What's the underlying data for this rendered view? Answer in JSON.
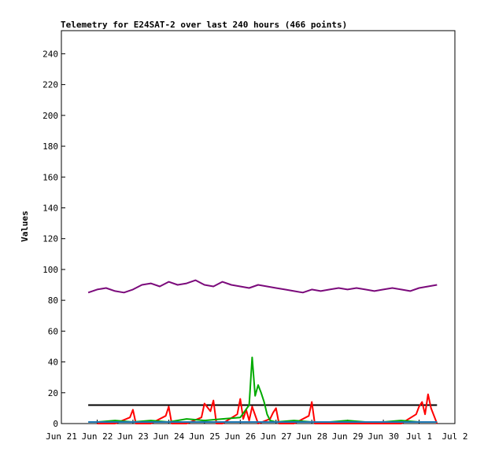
{
  "chart_data": {
    "type": "line",
    "title": "Telemetry for E24SAT-2 over last 240 hours (466 points)",
    "xlabel": "",
    "ylabel": "Values",
    "xlim": [
      "2024-06-21",
      "2024-07-02"
    ],
    "ylim": [
      0,
      255
    ],
    "x_ticks": [
      "Jun 21",
      "Jun 22",
      "Jun 23",
      "Jun 24",
      "Jun 25",
      "Jun 26",
      "Jun 27",
      "Jun 28",
      "Jun 29",
      "Jun 30",
      "Jul 1",
      "Jul 2"
    ],
    "y_ticks": [
      0,
      20,
      40,
      60,
      80,
      100,
      120,
      140,
      160,
      180,
      200,
      220,
      240
    ],
    "grid": false,
    "legend": "none",
    "series": [
      {
        "color": "#7b0a7b",
        "x": [
          "2024-06-21 18:00",
          "2024-06-22 00:00",
          "2024-06-22 06:00",
          "2024-06-22 12:00",
          "2024-06-22 18:00",
          "2024-06-23 00:00",
          "2024-06-23 06:00",
          "2024-06-23 12:00",
          "2024-06-23 18:00",
          "2024-06-24 00:00",
          "2024-06-24 06:00",
          "2024-06-24 12:00",
          "2024-06-24 18:00",
          "2024-06-25 00:00",
          "2024-06-25 06:00",
          "2024-06-25 12:00",
          "2024-06-25 18:00",
          "2024-06-26 00:00",
          "2024-06-26 06:00",
          "2024-06-26 12:00",
          "2024-06-26 18:00",
          "2024-06-27 00:00",
          "2024-06-27 06:00",
          "2024-06-27 12:00",
          "2024-06-27 18:00",
          "2024-06-28 00:00",
          "2024-06-28 06:00",
          "2024-06-28 12:00",
          "2024-06-28 18:00",
          "2024-06-29 00:00",
          "2024-06-29 06:00",
          "2024-06-29 12:00",
          "2024-06-29 18:00",
          "2024-06-30 00:00",
          "2024-06-30 06:00",
          "2024-06-30 12:00",
          "2024-06-30 18:00",
          "2024-07-01 00:00",
          "2024-07-01 06:00",
          "2024-07-01 12:00"
        ],
        "values": [
          85,
          87,
          88,
          86,
          85,
          87,
          90,
          91,
          89,
          92,
          90,
          91,
          93,
          90,
          89,
          92,
          90,
          89,
          88,
          90,
          89,
          88,
          87,
          86,
          85,
          87,
          86,
          87,
          88,
          87,
          88,
          87,
          86,
          87,
          88,
          87,
          86,
          88,
          89,
          90
        ]
      },
      {
        "color": "#000000",
        "x": [
          "2024-06-21 18:00",
          "2024-07-01 12:00"
        ],
        "values": [
          12,
          12
        ]
      },
      {
        "color": "#ff0000",
        "x": [
          "2024-06-22 00:00",
          "2024-06-22 12:00",
          "2024-06-22 22:00",
          "2024-06-23 00:00",
          "2024-06-23 02:00",
          "2024-06-23 12:00",
          "2024-06-23 22:00",
          "2024-06-24 00:00",
          "2024-06-24 02:00",
          "2024-06-24 12:00",
          "2024-06-24 22:00",
          "2024-06-25 00:00",
          "2024-06-25 04:00",
          "2024-06-25 06:00",
          "2024-06-25 08:00",
          "2024-06-25 12:00",
          "2024-06-25 22:00",
          "2024-06-26 00:00",
          "2024-06-26 02:00",
          "2024-06-26 04:00",
          "2024-06-26 06:00",
          "2024-06-26 08:00",
          "2024-06-26 12:00",
          "2024-06-26 20:00",
          "2024-06-26 22:00",
          "2024-06-27 00:00",
          "2024-06-27 02:00",
          "2024-06-27 12:00",
          "2024-06-27 22:00",
          "2024-06-28 00:00",
          "2024-06-28 02:00",
          "2024-06-28 12:00",
          "2024-06-29 00:00",
          "2024-06-30 00:00",
          "2024-06-30 12:00",
          "2024-06-30 22:00",
          "2024-07-01 00:00",
          "2024-07-01 02:00",
          "2024-07-01 04:00",
          "2024-07-01 06:00",
          "2024-07-01 08:00",
          "2024-07-01 12:00"
        ],
        "values": [
          0,
          0,
          4,
          9,
          0,
          0,
          5,
          11,
          0,
          0,
          4,
          13,
          8,
          15,
          0,
          0,
          6,
          16,
          3,
          9,
          2,
          11,
          0,
          3,
          7,
          10,
          0,
          0,
          5,
          14,
          0,
          0,
          0,
          0,
          0,
          6,
          11,
          14,
          6,
          19,
          10,
          0
        ]
      },
      {
        "color": "#00aa00",
        "x": [
          "2024-06-22 00:00",
          "2024-06-22 12:00",
          "2024-06-23 00:00",
          "2024-06-23 12:00",
          "2024-06-24 00:00",
          "2024-06-24 12:00",
          "2024-06-25 00:00",
          "2024-06-25 12:00",
          "2024-06-26 00:00",
          "2024-06-26 06:00",
          "2024-06-26 08:00",
          "2024-06-26 10:00",
          "2024-06-26 12:00",
          "2024-06-26 14:00",
          "2024-06-26 16:00",
          "2024-06-26 18:00",
          "2024-06-26 20:00",
          "2024-06-27 00:00",
          "2024-06-27 12:00",
          "2024-06-28 00:00",
          "2024-06-28 12:00",
          "2024-06-29 00:00",
          "2024-06-29 12:00",
          "2024-06-30 00:00",
          "2024-06-30 12:00",
          "2024-07-01 00:00",
          "2024-07-01 12:00"
        ],
        "values": [
          1,
          2,
          1,
          2,
          1,
          3,
          2,
          3,
          4,
          12,
          43,
          18,
          25,
          20,
          14,
          6,
          2,
          1,
          2,
          1,
          1,
          2,
          1,
          1,
          2,
          1,
          1
        ]
      },
      {
        "color": "#1e78b4",
        "x": [
          "2024-06-21 18:00",
          "2024-07-01 12:00"
        ],
        "values": [
          1,
          1
        ]
      }
    ]
  }
}
